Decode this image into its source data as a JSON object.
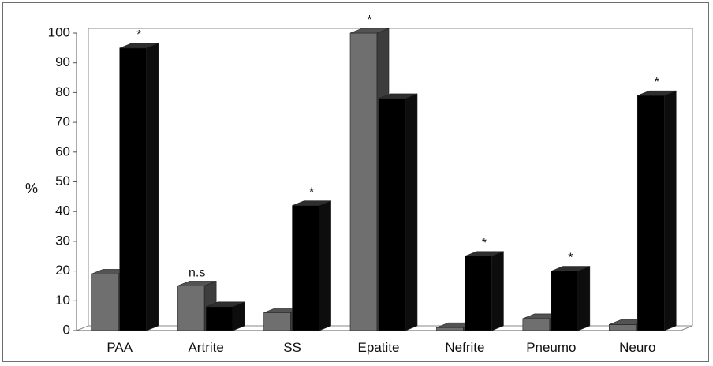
{
  "chart_data": {
    "type": "bar",
    "ylabel": "%",
    "ylim": [
      0,
      100
    ],
    "yticks": [
      0,
      10,
      20,
      30,
      40,
      50,
      60,
      70,
      80,
      90,
      100
    ],
    "categories": [
      "PAA",
      "Artrite",
      "SS",
      "Epatite",
      "Nefrite",
      "Pneumo",
      "Neuro"
    ],
    "series": [
      {
        "values": [
          19,
          15,
          6,
          100,
          1,
          4,
          2
        ],
        "color": "#6f6f6f"
      },
      {
        "values": [
          95,
          8,
          42,
          78,
          25,
          20,
          79
        ],
        "color": "#000000"
      }
    ],
    "annotations": [
      {
        "category": "PAA",
        "series": 1,
        "text": "*"
      },
      {
        "category": "Artrite",
        "series": 0,
        "text": "n.s"
      },
      {
        "category": "SS",
        "series": 1,
        "text": "*"
      },
      {
        "category": "Epatite",
        "series": 0,
        "text": "*"
      },
      {
        "category": "Nefrite",
        "series": 1,
        "text": "*"
      },
      {
        "category": "Pneumo",
        "series": 1,
        "text": "*"
      },
      {
        "category": "Neuro",
        "series": 1,
        "text": "*"
      }
    ],
    "grid": false,
    "legend": "none",
    "style": "3d-bars"
  }
}
